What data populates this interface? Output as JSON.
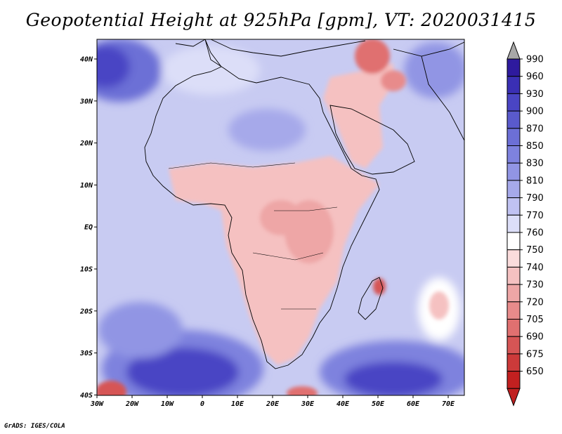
{
  "title": "Geopotential Height at 925hPa [gpm], VT: 2020031415",
  "credit": "GrADS: IGES/COLA",
  "axes": {
    "lon_labels": [
      "30W",
      "20W",
      "10W",
      "0",
      "10E",
      "20E",
      "30E",
      "40E",
      "50E",
      "60E",
      "70E"
    ],
    "lat_labels": [
      "40N",
      "30N",
      "20N",
      "10N",
      "EQ",
      "10S",
      "20S",
      "30S",
      "40S"
    ]
  },
  "colorbar": {
    "levels": [
      "990",
      "960",
      "930",
      "900",
      "870",
      "850",
      "830",
      "810",
      "790",
      "770",
      "760",
      "750",
      "740",
      "730",
      "720",
      "705",
      "690",
      "675",
      "650"
    ],
    "colors": [
      "#2e1a9e",
      "#3a2fb4",
      "#4a45c4",
      "#5a5acc",
      "#6c6fd6",
      "#7e82de",
      "#9195e4",
      "#a6a9ea",
      "#c0c2f2",
      "#dcdef8",
      "#ffffff",
      "#fbdcdc",
      "#f5c1c1",
      "#eea6a6",
      "#e88b8b",
      "#e07070",
      "#d65555",
      "#cc3a3a",
      "#c22020"
    ],
    "triangle_top_color": "#a8a8a8",
    "triangle_bottom_color": "#c02020"
  },
  "field_colors": {
    "ocean_mid": "#c8cbf2",
    "ocean_deep": "#5a5acc",
    "land_neutral": "#dcdef8",
    "land_low": "#f5c1c1",
    "land_very_low": "#e07070"
  }
}
